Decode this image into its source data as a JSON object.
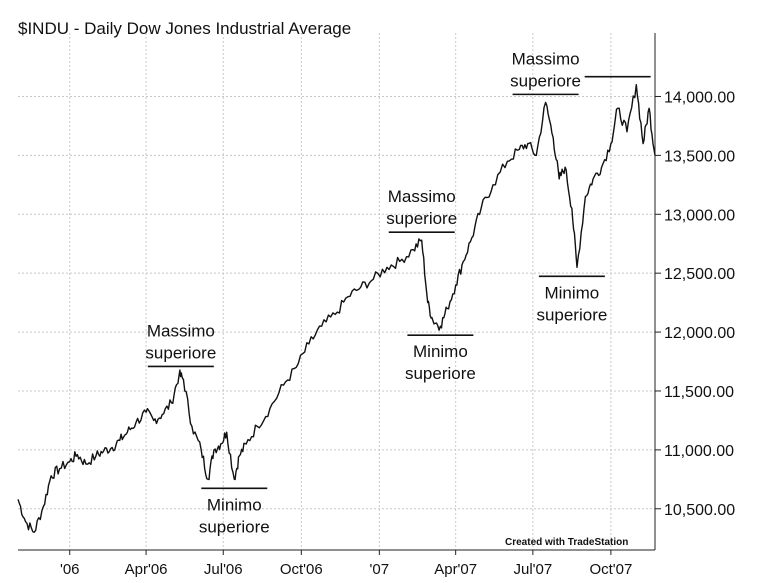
{
  "chart_data": {
    "type": "line",
    "title": "$INDU - Daily  Dow Jones Industrial Average",
    "credit": "Created with TradeStation",
    "xlabels": [
      "'06",
      "Apr'06",
      "Jul'06",
      "Oct'06",
      "'07",
      "Apr'07",
      "Jul'07",
      "Oct'07"
    ],
    "x_label_dates": [
      "2006-01-01",
      "2006-04-01",
      "2006-07-01",
      "2006-10-01",
      "2007-01-01",
      "2007-04-01",
      "2007-07-01",
      "2007-10-01"
    ],
    "xlim": [
      "2005-11-01",
      "2007-11-22"
    ],
    "yticks": [
      10500,
      11000,
      11500,
      12000,
      12500,
      13000,
      13500,
      14000
    ],
    "ytick_labels": [
      "10,500.00",
      "11,000.00",
      "11,500.00",
      "12,000.00",
      "12,500.00",
      "13,000.00",
      "13,500.00",
      "14,000.00"
    ],
    "ylim": [
      10150,
      14420
    ],
    "grid": true,
    "y_axis_side": "right",
    "series": [
      {
        "x": [
          "2005-11-01",
          "2005-11-10",
          "2005-11-20",
          "2005-12-01",
          "2005-12-10",
          "2005-12-20",
          "2006-01-01",
          "2006-01-10",
          "2006-01-20",
          "2006-02-01",
          "2006-02-10",
          "2006-02-20",
          "2006-03-01",
          "2006-03-10",
          "2006-03-20",
          "2006-04-01",
          "2006-04-10",
          "2006-04-20",
          "2006-05-01",
          "2006-05-10",
          "2006-05-15",
          "2006-05-25",
          "2006-06-05",
          "2006-06-13",
          "2006-06-20",
          "2006-06-28",
          "2006-07-05",
          "2006-07-14",
          "2006-07-20",
          "2006-07-28",
          "2006-08-10",
          "2006-08-25",
          "2006-09-10",
          "2006-09-25",
          "2006-10-10",
          "2006-10-25",
          "2006-11-10",
          "2006-11-25",
          "2006-12-10",
          "2006-12-25",
          "2007-01-10",
          "2007-01-25",
          "2007-02-10",
          "2007-02-20",
          "2007-02-27",
          "2007-03-05",
          "2007-03-14",
          "2007-03-22",
          "2007-04-01",
          "2007-04-10",
          "2007-04-20",
          "2007-05-01",
          "2007-05-15",
          "2007-06-01",
          "2007-06-15",
          "2007-06-25",
          "2007-07-05",
          "2007-07-16",
          "2007-07-25",
          "2007-08-01",
          "2007-08-08",
          "2007-08-16",
          "2007-08-22",
          "2007-09-01",
          "2007-09-10",
          "2007-09-20",
          "2007-10-01",
          "2007-10-09",
          "2007-10-20",
          "2007-10-31",
          "2007-11-08",
          "2007-11-15",
          "2007-11-22"
        ],
        "y": [
          10580,
          10390,
          10300,
          10520,
          10780,
          10840,
          10900,
          10960,
          10880,
          10950,
          10990,
          11020,
          11080,
          11150,
          11230,
          11320,
          11250,
          11300,
          11400,
          11640,
          11600,
          11200,
          11000,
          10750,
          11000,
          11050,
          11150,
          10750,
          10950,
          11050,
          11200,
          11350,
          11550,
          11700,
          11900,
          12050,
          12150,
          12300,
          12380,
          12450,
          12550,
          12600,
          12700,
          12780,
          12250,
          12100,
          12050,
          12200,
          12400,
          12600,
          12800,
          13050,
          13250,
          13450,
          13550,
          13600,
          13500,
          13950,
          13650,
          13300,
          13400,
          13050,
          12550,
          13150,
          13300,
          13400,
          13600,
          13900,
          13700,
          14100,
          13600,
          13900,
          13500
        ]
      }
    ],
    "annotations": [
      {
        "lines": [
          "Massimo",
          "superiore"
        ],
        "date": "2006-05-12",
        "value": 11640,
        "kind": "massimo"
      },
      {
        "lines": [
          "Minimo",
          "superiore"
        ],
        "date": "2006-07-14",
        "value": 10750,
        "kind": "minimo"
      },
      {
        "lines": [
          "Massimo",
          "superiore"
        ],
        "date": "2007-02-20",
        "value": 12780,
        "kind": "massimo"
      },
      {
        "lines": [
          "Minimo",
          "superiore"
        ],
        "date": "2007-03-14",
        "value": 12050,
        "kind": "minimo"
      },
      {
        "lines": [
          "Massimo",
          "superiore"
        ],
        "date": "2007-07-16",
        "value": 13950,
        "kind": "massimo"
      },
      {
        "lines": [
          "Minimo",
          "superiore"
        ],
        "date": "2007-08-16",
        "value": 12550,
        "kind": "minimo"
      },
      {
        "lines": [],
        "date": "2007-10-09",
        "value": 14100,
        "kind": "massimo"
      }
    ]
  }
}
